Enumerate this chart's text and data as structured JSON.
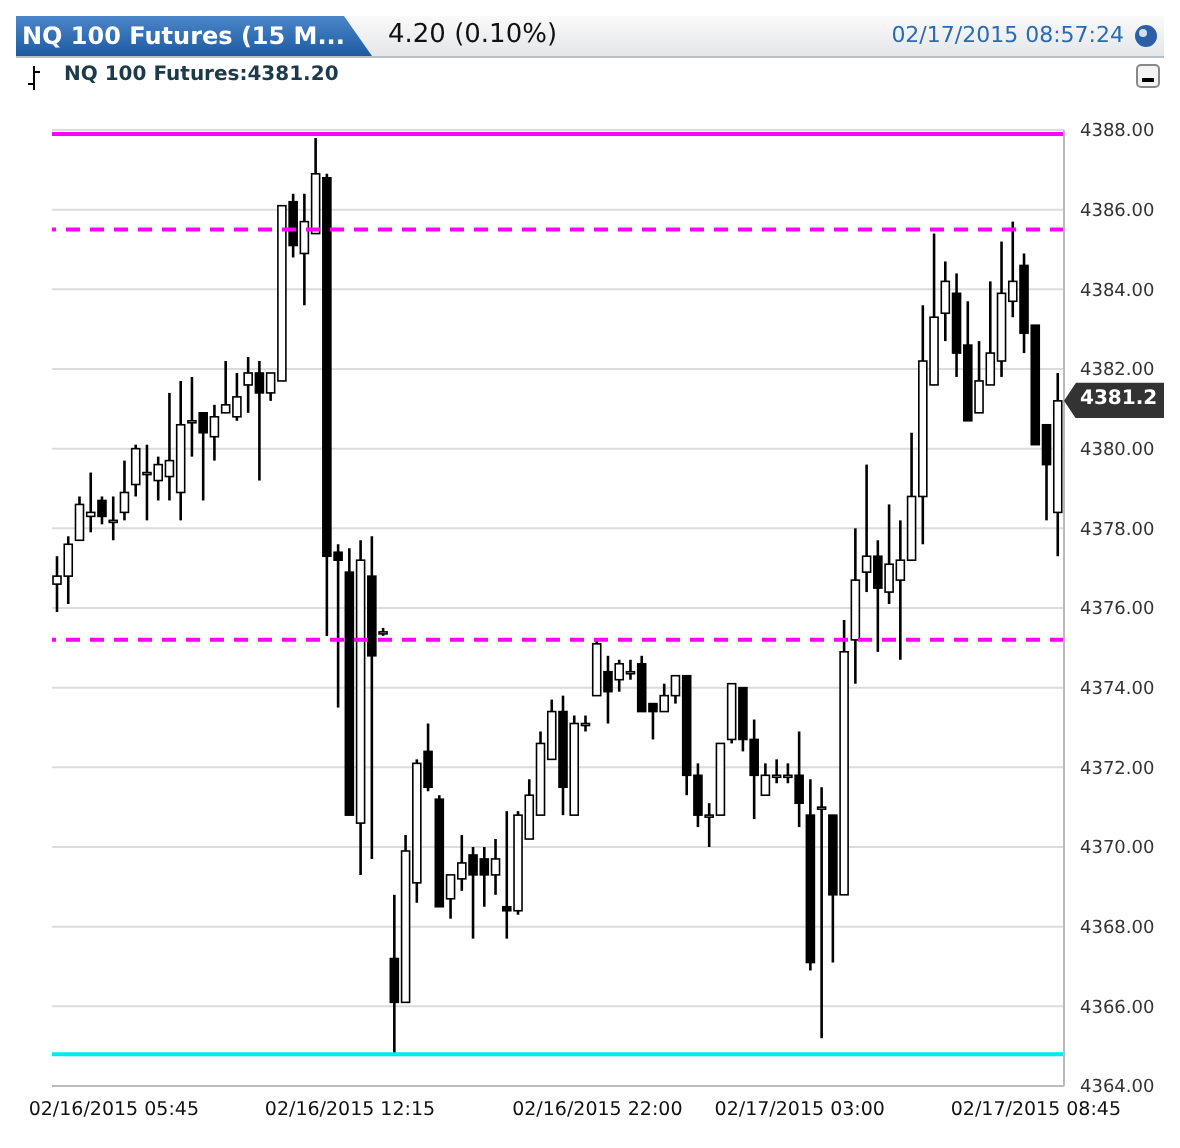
{
  "chart_data": {
    "type": "candlestick",
    "title": "NQ 100 Futures (15 M...",
    "subtitle": "4.20 (0.10%)",
    "annotations": [
      "NQ 100 Futures:4381.20",
      "02/17/2015 08:57:24",
      "4381.2"
    ],
    "categories": [
      null,
      null,
      null,
      null,
      null,
      "02/16/2015 05:45",
      null,
      null,
      null,
      null,
      null,
      null,
      null,
      null,
      null,
      null,
      null,
      null,
      null,
      null,
      null,
      null,
      null,
      null,
      null,
      null,
      "02/16/2015 12:15",
      null,
      null,
      null,
      null,
      null,
      null,
      null,
      null,
      null,
      null,
      null,
      null,
      null,
      null,
      null,
      null,
      null,
      null,
      null,
      null,
      null,
      "02/16/2015 22:00",
      null,
      null,
      null,
      null,
      null,
      null,
      null,
      null,
      null,
      null,
      null,
      null,
      null,
      null,
      null,
      null,
      null,
      "02/17/2015 03:00",
      null,
      null,
      null,
      null,
      null,
      null,
      null,
      null,
      null,
      null,
      null,
      null,
      null,
      null,
      null,
      null,
      null,
      null,
      null,
      null,
      "02/17/2015 08:45",
      null,
      null
    ],
    "color": "#000000",
    "ohlc": [
      [
        4376.6,
        4377.3,
        4375.9,
        4376.8
      ],
      [
        4376.8,
        4377.8,
        4376.1,
        4377.6
      ],
      [
        4377.7,
        4378.8,
        4377.7,
        4378.6
      ],
      [
        4378.3,
        4379.4,
        4377.9,
        4378.4
      ],
      [
        4378.7,
        4378.8,
        4378.1,
        4378.3
      ],
      [
        4378.2,
        4378.8,
        4377.7,
        4378.2
      ],
      [
        4378.4,
        4379.7,
        4378.2,
        4378.9
      ],
      [
        4379.1,
        4380.1,
        4378.8,
        4380.0
      ],
      [
        4379.4,
        4380.1,
        4378.2,
        4379.4
      ],
      [
        4379.2,
        4379.8,
        4378.7,
        4379.6
      ],
      [
        4379.3,
        4381.4,
        4378.7,
        4379.7
      ],
      [
        4378.9,
        4381.7,
        4378.2,
        4380.6
      ],
      [
        4380.7,
        4381.8,
        4379.8,
        4380.7
      ],
      [
        4380.9,
        4380.9,
        4378.7,
        4380.4
      ],
      [
        4380.3,
        4381.1,
        4379.7,
        4380.8
      ],
      [
        4380.9,
        4382.2,
        4380.9,
        4381.1
      ],
      [
        4380.8,
        4381.9,
        4380.7,
        4381.3
      ],
      [
        4381.6,
        4382.3,
        4380.9,
        4381.9
      ],
      [
        4381.9,
        4382.2,
        4379.2,
        4381.4
      ],
      [
        4381.4,
        4381.9,
        4381.2,
        4381.9
      ],
      [
        4381.7,
        4386.1,
        4381.7,
        4386.1
      ],
      [
        4386.2,
        4386.4,
        4384.8,
        4385.1
      ],
      [
        4384.9,
        4386.4,
        4383.6,
        4385.7
      ],
      [
        4385.4,
        4387.8,
        4385.4,
        4386.9
      ],
      [
        4386.8,
        4386.9,
        4375.3,
        4377.3
      ],
      [
        4377.4,
        4377.6,
        4373.5,
        4377.2
      ],
      [
        4376.9,
        4377.5,
        4370.8,
        4370.8
      ],
      [
        4370.6,
        4377.7,
        4369.3,
        4377.2
      ],
      [
        4376.8,
        4377.8,
        4369.7,
        4374.8
      ],
      [
        4375.4,
        4375.5,
        4375.3,
        4375.4
      ],
      [
        4367.2,
        4368.8,
        4364.8,
        4366.1
      ],
      [
        4366.1,
        4370.3,
        4366.1,
        4369.9
      ],
      [
        4369.1,
        4372.2,
        4368.6,
        4372.1
      ],
      [
        4372.4,
        4373.1,
        4371.4,
        4371.5
      ],
      [
        4371.2,
        4371.3,
        4368.5,
        4368.5
      ],
      [
        4368.7,
        4369.3,
        4368.2,
        4369.3
      ],
      [
        4369.2,
        4370.3,
        4368.9,
        4369.6
      ],
      [
        4369.8,
        4370.0,
        4367.7,
        4369.3
      ],
      [
        4369.7,
        4370.0,
        4368.5,
        4369.3
      ],
      [
        4369.3,
        4370.2,
        4368.8,
        4369.7
      ],
      [
        4368.5,
        4370.9,
        4367.7,
        4368.4
      ],
      [
        4368.4,
        4370.9,
        4368.3,
        4370.8
      ],
      [
        4370.2,
        4371.7,
        4370.2,
        4371.3
      ],
      [
        4370.8,
        4372.9,
        4370.8,
        4372.6
      ],
      [
        4372.2,
        4373.7,
        4372.2,
        4373.4
      ],
      [
        4373.4,
        4373.8,
        4370.8,
        4371.5
      ],
      [
        4370.8,
        4373.3,
        4370.8,
        4373.1
      ],
      [
        4373.1,
        4373.3,
        4372.9,
        4373.1
      ],
      [
        4373.8,
        4375.2,
        4373.8,
        4375.1
      ],
      [
        4374.4,
        4374.8,
        4373.1,
        4373.9
      ],
      [
        4374.2,
        4374.7,
        4373.9,
        4374.6
      ],
      [
        4374.4,
        4374.7,
        4374.2,
        4374.4
      ],
      [
        4374.6,
        4374.8,
        4373.4,
        4373.4
      ],
      [
        4373.6,
        4373.6,
        4372.7,
        4373.4
      ],
      [
        4373.4,
        4374.1,
        4373.4,
        4373.8
      ],
      [
        4373.8,
        4374.3,
        4373.6,
        4374.3
      ],
      [
        4374.3,
        4374.3,
        4371.3,
        4371.8
      ],
      [
        4371.8,
        4372.1,
        4370.5,
        4370.8
      ],
      [
        4370.8,
        4371.1,
        4370.0,
        4370.8
      ],
      [
        4370.8,
        4372.6,
        4370.8,
        4372.6
      ],
      [
        4372.7,
        4374.1,
        4372.6,
        4374.1
      ],
      [
        4374.0,
        4374.0,
        4372.4,
        4372.7
      ],
      [
        4372.7,
        4373.2,
        4370.7,
        4371.8
      ],
      [
        4371.3,
        4372.1,
        4371.3,
        4371.8
      ],
      [
        4371.8,
        4372.2,
        4371.6,
        4371.8
      ],
      [
        4371.8,
        4372.1,
        4371.6,
        4371.8
      ],
      [
        4371.8,
        4372.9,
        4370.5,
        4371.1
      ],
      [
        4370.8,
        4371.7,
        4366.9,
        4367.1
      ],
      [
        4371.0,
        4371.5,
        4365.2,
        4371.0
      ],
      [
        4370.8,
        4370.8,
        4367.1,
        4368.8
      ],
      [
        4368.8,
        4375.7,
        4368.8,
        4374.9
      ],
      [
        4375.2,
        4378.0,
        4374.1,
        4376.7
      ],
      [
        4376.9,
        4379.6,
        4376.4,
        4377.3
      ],
      [
        4377.3,
        4377.7,
        4374.9,
        4376.5
      ],
      [
        4376.4,
        4378.6,
        4376.1,
        4377.1
      ],
      [
        4376.7,
        4378.2,
        4374.7,
        4377.2
      ],
      [
        4377.2,
        4380.4,
        4377.2,
        4378.8
      ],
      [
        4378.8,
        4383.6,
        4377.6,
        4382.2
      ],
      [
        4381.6,
        4385.4,
        4381.6,
        4383.3
      ],
      [
        4383.4,
        4384.7,
        4382.7,
        4384.2
      ],
      [
        4383.9,
        4384.4,
        4381.8,
        4382.4
      ],
      [
        4382.6,
        4383.7,
        4380.7,
        4380.7
      ],
      [
        4380.9,
        4382.7,
        4380.9,
        4381.7
      ],
      [
        4381.6,
        4384.2,
        4381.6,
        4382.4
      ],
      [
        4382.2,
        4385.2,
        4381.8,
        4383.9
      ],
      [
        4383.7,
        4385.7,
        4383.3,
        4384.2
      ],
      [
        4384.6,
        4384.9,
        4382.4,
        4382.9
      ],
      [
        4383.1,
        4383.1,
        4380.1,
        4380.1
      ],
      [
        4380.6,
        4380.6,
        4378.2,
        4379.6
      ],
      [
        4378.4,
        4381.9,
        4377.3,
        4381.2
      ]
    ],
    "ylim": [
      4364,
      4388
    ],
    "yticks": [
      {
        "value": 4364,
        "label": "4364.00"
      },
      {
        "value": 4366,
        "label": "4366.00"
      },
      {
        "value": 4368,
        "label": "4368.00"
      },
      {
        "value": 4370,
        "label": "4370.00"
      },
      {
        "value": 4372,
        "label": "4372.00"
      },
      {
        "value": 4374,
        "label": "4374.00"
      },
      {
        "value": 4376,
        "label": "4376.00"
      },
      {
        "value": 4378,
        "label": "4378.00"
      },
      {
        "value": 4380,
        "label": "4380.00"
      },
      {
        "value": 4382,
        "label": "4382.00"
      },
      {
        "value": 4384,
        "label": "4384.00"
      },
      {
        "value": 4386,
        "label": "4386.00"
      },
      {
        "value": 4388,
        "label": "4388.00"
      }
    ],
    "grid": "y",
    "ref_lines": [
      {
        "axis": "y",
        "value": 4387.9,
        "color": "#ff00ff",
        "line_style": "solid"
      },
      {
        "axis": "y",
        "value": 4385.5,
        "color": "#ff00ff",
        "line_style": "dashed"
      },
      {
        "axis": "y",
        "value": 4375.2,
        "color": "#ff00ff",
        "line_style": "dashed"
      },
      {
        "axis": "y",
        "value": 4364.8,
        "color": "#00e8f0",
        "line_style": "solid"
      }
    ]
  }
}
